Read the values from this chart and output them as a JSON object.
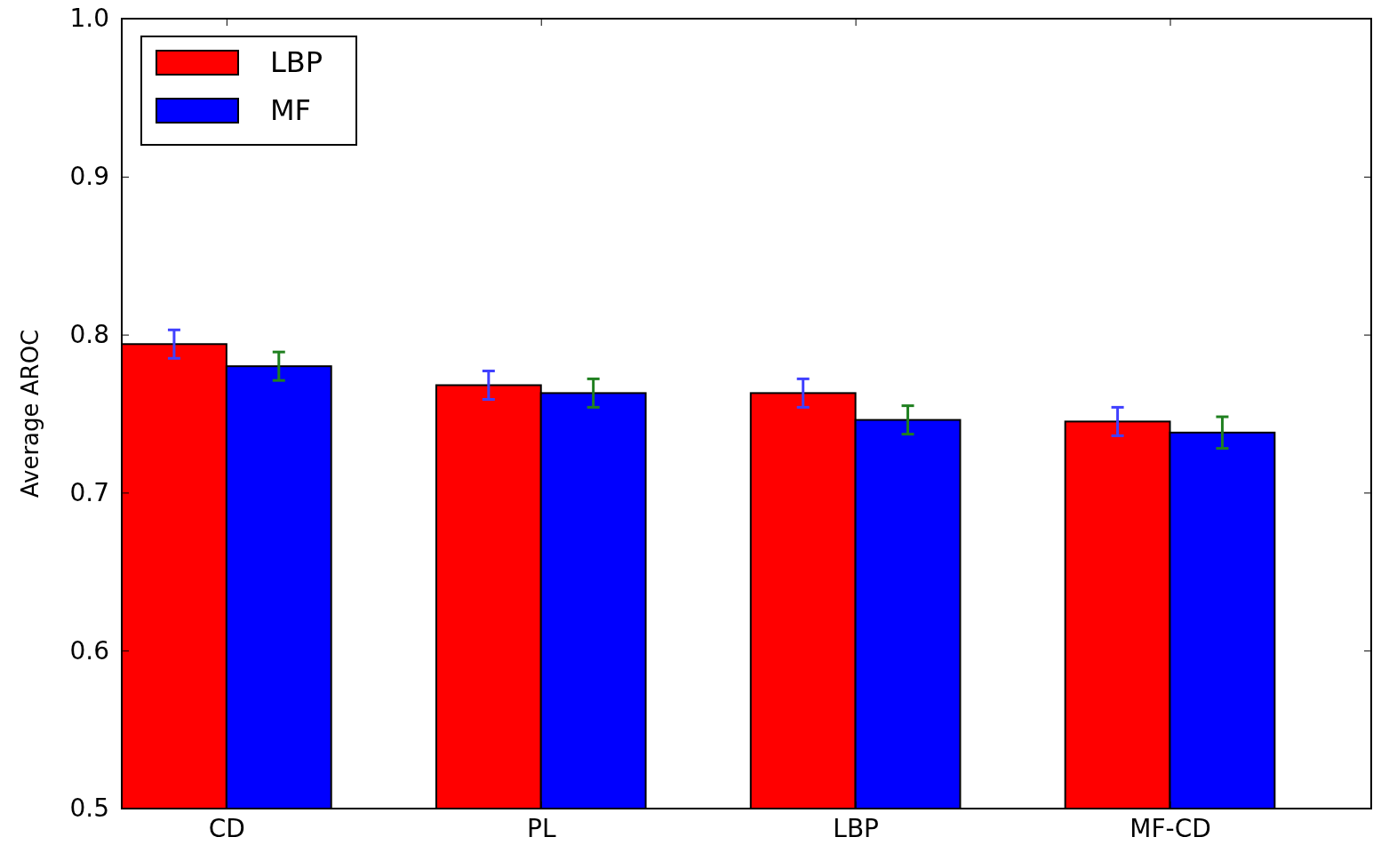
{
  "chart_data": {
    "type": "bar",
    "ylabel": "Average AROC",
    "categories": [
      "CD",
      "PL",
      "LBP",
      "MF-CD"
    ],
    "series": [
      {
        "name": "LBP",
        "color": "#ff0000",
        "values": [
          0.794,
          0.768,
          0.763,
          0.745
        ],
        "errors": [
          0.009,
          0.009,
          0.009,
          0.009
        ]
      },
      {
        "name": "MF",
        "color": "#0000ff",
        "values": [
          0.78,
          0.763,
          0.746,
          0.738
        ],
        "errors": [
          0.009,
          0.009,
          0.009,
          0.01
        ]
      }
    ],
    "ylim": [
      0.5,
      1.0
    ],
    "yticks": [
      0.5,
      0.6,
      0.7,
      0.8,
      0.9,
      {
        "value": 1,
        "label": "1.0"
      }
    ],
    "legend": "top left"
  }
}
